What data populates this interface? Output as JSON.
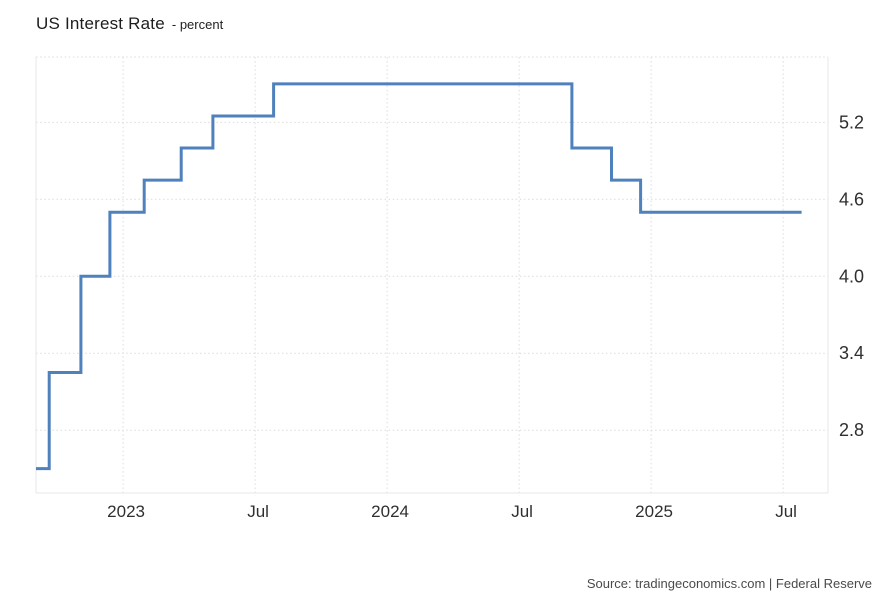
{
  "header": {
    "title": "US Interest Rate",
    "subtitle": "- percent"
  },
  "source": {
    "text": "Source: tradingeconomics.com | Federal Reserve"
  },
  "colors": {
    "line": "#4f81bd",
    "grid": "#dcdcdc",
    "border": "#e7e7e7",
    "axis_text": "#2f2f2f",
    "title_text": "#1d1d1d",
    "source_text": "#4a4a4a",
    "background": "#ffffff"
  },
  "chart_data": {
    "type": "line",
    "step_style": "step-after",
    "title": "US Interest Rate",
    "ylabel": "percent",
    "xlabel": "",
    "grid": true,
    "legend_position": "none",
    "x_domain": [
      2022.67,
      2025.67
    ],
    "y_domain": [
      2.31,
      5.71
    ],
    "x_ticks": [
      {
        "value": 2023.0,
        "label": "2023"
      },
      {
        "value": 2023.5,
        "label": "Jul"
      },
      {
        "value": 2024.0,
        "label": "2024"
      },
      {
        "value": 2024.5,
        "label": "Jul"
      },
      {
        "value": 2025.0,
        "label": "2025"
      },
      {
        "value": 2025.5,
        "label": "Jul"
      }
    ],
    "y_ticks": [
      {
        "value": 5.2,
        "label": "5.2"
      },
      {
        "value": 4.6,
        "label": "4.6"
      },
      {
        "value": 4.0,
        "label": "4.0"
      },
      {
        "value": 3.4,
        "label": "3.4"
      },
      {
        "value": 2.8,
        "label": "2.8"
      }
    ],
    "series": [
      {
        "name": "US Interest Rate (percent)",
        "color": "#4f81bd",
        "points": [
          {
            "x": 2022.67,
            "y": 2.5
          },
          {
            "x": 2022.72,
            "y": 3.25
          },
          {
            "x": 2022.84,
            "y": 4.0
          },
          {
            "x": 2022.95,
            "y": 4.5
          },
          {
            "x": 2023.08,
            "y": 4.75
          },
          {
            "x": 2023.22,
            "y": 5.0
          },
          {
            "x": 2023.34,
            "y": 5.25
          },
          {
            "x": 2023.57,
            "y": 5.5
          },
          {
            "x": 2024.7,
            "y": 5.0
          },
          {
            "x": 2024.85,
            "y": 4.75
          },
          {
            "x": 2024.96,
            "y": 4.5
          },
          {
            "x": 2025.57,
            "y": 4.5
          }
        ]
      }
    ]
  }
}
